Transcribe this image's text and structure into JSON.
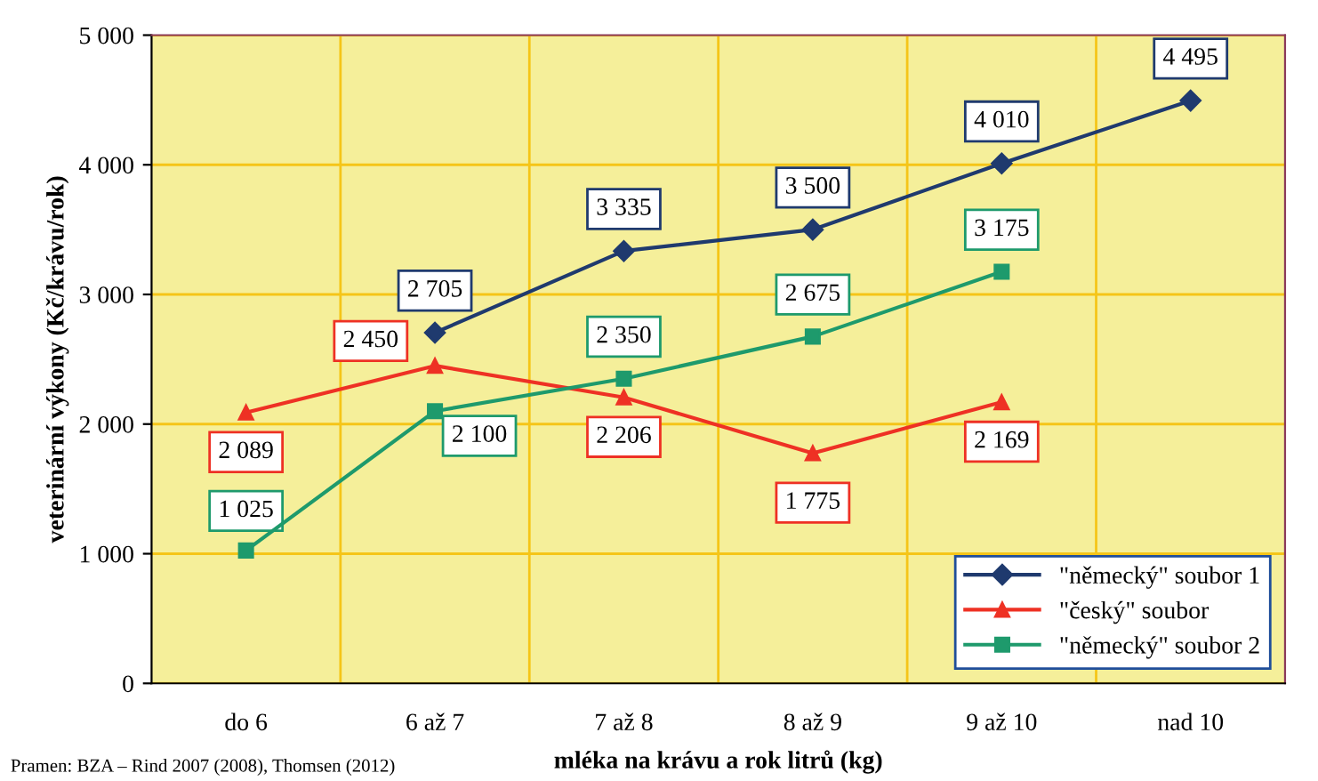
{
  "chart_data": {
    "type": "line",
    "xlabel": "mléka na krávu a rok litrů (kg)",
    "ylabel": "veterinární výkony (Kč/krávu/rok)",
    "categories": [
      "do 6",
      "6 až 7",
      "7 až 8",
      "8 až 9",
      "9 až 10",
      "nad 10"
    ],
    "series": [
      {
        "name": "\"německý\" soubor 1",
        "color": "#1f3a6e",
        "marker": "diamond",
        "values": [
          null,
          2705,
          3335,
          3500,
          4010,
          4495
        ]
      },
      {
        "name": "\"český\" soubor",
        "color": "#ee3124",
        "marker": "triangle",
        "values": [
          2089,
          2450,
          2206,
          1775,
          2169,
          null
        ]
      },
      {
        "name": "\"německý\" soubor 2",
        "color": "#1e9a6c",
        "marker": "square",
        "values": [
          1025,
          2100,
          2350,
          2675,
          3175,
          null
        ]
      }
    ],
    "ylim": [
      0,
      5000
    ],
    "yticks": [
      0,
      {
        "value": 1000,
        "label": "1 000"
      },
      {
        "value": 2000,
        "label": "2 000"
      },
      {
        "value": 3000,
        "label": "3 000"
      },
      {
        "value": 4000,
        "label": "4 000"
      },
      {
        "value": 5000,
        "label": "5 000"
      }
    ],
    "grid": true,
    "legend": "bottom right",
    "data_labels": true,
    "line_style": "solid",
    "annotations": [
      "Pramen: BZA – Rind 2007 (2008), Thomsen (2012)"
    ]
  }
}
